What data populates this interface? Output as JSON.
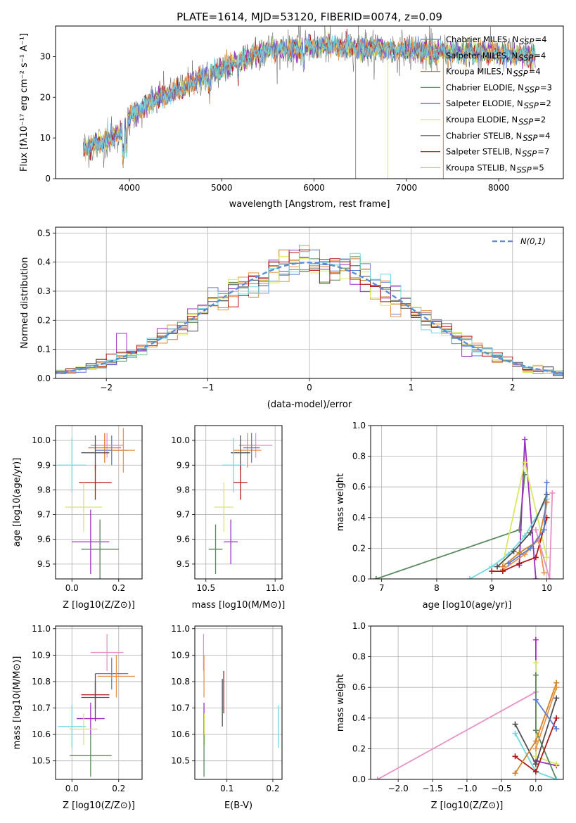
{
  "title": "PLATE=1614, MJD=53120, FIBERID=0074, z=0.09",
  "models": [
    {
      "name": "Chabrier MILES",
      "nssp": "4",
      "color": "#5b7fd4"
    },
    {
      "name": "Salpeter MILES",
      "nssp": "4",
      "color": "#e8944a"
    },
    {
      "name": "Kroupa MILES",
      "nssp": "4",
      "color": "#d4822a"
    },
    {
      "name": "Chabrier ELODIE",
      "nssp": "3",
      "color": "#5a8a5e"
    },
    {
      "name": "Salpeter ELODIE",
      "nssp": "2",
      "color": "#9b30c0"
    },
    {
      "name": "Kroupa ELODIE",
      "nssp": "2",
      "color": "#d8e860"
    },
    {
      "name": "Chabrier STELIB",
      "nssp": "4",
      "color": "#505050"
    },
    {
      "name": "Salpeter STELIB",
      "nssp": "7",
      "color": "#b01818"
    },
    {
      "name": "Kroupa STELIB",
      "nssp": "5",
      "color": "#70d8e0"
    }
  ],
  "extra_colors": [
    "#e890c8",
    "#808080"
  ],
  "chart_data": [
    {
      "id": "spectrum",
      "type": "line",
      "xlabel": "wavelength [Angstrom, rest frame]",
      "ylabel": "Flux [fλ10⁻¹⁷ erg cm⁻² s⁻¹ A⁻¹]",
      "xlim": [
        3200,
        8700
      ],
      "ylim": [
        0,
        37.5
      ],
      "xticks": [
        4000,
        5000,
        6000,
        7000,
        8000
      ],
      "yticks": [
        0,
        10,
        20,
        30
      ],
      "continuum": [
        [
          3500,
          7
        ],
        [
          3700,
          9
        ],
        [
          3900,
          11
        ],
        [
          4000,
          15
        ],
        [
          4200,
          18.5
        ],
        [
          4500,
          21.5
        ],
        [
          4800,
          25
        ],
        [
          5000,
          27
        ],
        [
          5200,
          29
        ],
        [
          5500,
          31.5
        ],
        [
          5800,
          32
        ],
        [
          6000,
          32.5
        ],
        [
          6300,
          32.5
        ],
        [
          6600,
          32
        ],
        [
          7000,
          31.5
        ],
        [
          7400,
          31
        ],
        [
          7800,
          31
        ],
        [
          8200,
          30.5
        ],
        [
          8400,
          30
        ]
      ],
      "grid": false
    },
    {
      "id": "residuals",
      "type": "line",
      "xlabel": "(data-model)/error",
      "ylabel": "Normed distribution",
      "xlim": [
        -2.5,
        2.5
      ],
      "ylim": [
        0,
        0.52
      ],
      "xticks": [
        -2,
        -1,
        0,
        1,
        2
      ],
      "yticks": [
        0.0,
        0.1,
        0.2,
        0.3,
        0.4,
        0.5
      ],
      "legend": "N(0,1)",
      "legend_position": "top-right",
      "grid": true
    },
    {
      "id": "age-vs-Z",
      "type": "scatter",
      "xlabel": "Z [log10(Z/Z⊙)]",
      "ylabel": "age [log10(age/yr)]",
      "xlim": [
        -0.07,
        0.3
      ],
      "ylim": [
        9.44,
        10.06
      ],
      "xticks": [
        0.0,
        0.2
      ],
      "yticks": [
        9.5,
        9.6,
        9.7,
        9.8,
        9.9,
        10.0
      ],
      "points": [
        {
          "x": 0.17,
          "y": 9.96,
          "ex": 0.07,
          "ey": 0.06,
          "c": 0
        },
        {
          "x": 0.22,
          "y": 9.96,
          "ex": 0.05,
          "ey": 0.09,
          "c": 1
        },
        {
          "x": 0.15,
          "y": 9.98,
          "ex": 0.07,
          "ey": 0.05,
          "c": 9
        },
        {
          "x": 0.14,
          "y": 9.97,
          "ex": 0.07,
          "ey": 0.06,
          "c": 2
        },
        {
          "x": 0.1,
          "y": 9.95,
          "ex": 0.06,
          "ey": 0.07,
          "c": 6
        },
        {
          "x": 0.0,
          "y": 9.9,
          "ex": 0.06,
          "ey": 0.11,
          "c": 8
        },
        {
          "x": 0.1,
          "y": 9.83,
          "ex": 0.07,
          "ey": 0.07,
          "c": 7
        },
        {
          "x": 0.05,
          "y": 9.73,
          "ex": 0.08,
          "ey": 0.1,
          "c": 5
        },
        {
          "x": 0.08,
          "y": 9.59,
          "ex": 0.08,
          "ey": 0.13,
          "c": 4
        },
        {
          "x": 0.12,
          "y": 9.56,
          "ex": 0.08,
          "ey": 0.12,
          "c": 3
        }
      ],
      "grid": true
    },
    {
      "id": "age-vs-mass",
      "type": "scatter",
      "xlabel": "mass [log10(M/M⊙)]",
      "ylabel": "",
      "xlim": [
        10.42,
        11.05
      ],
      "ylim": [
        9.44,
        10.06
      ],
      "xticks": [
        10.5,
        11.0
      ],
      "yticks": [
        9.5,
        9.6,
        9.7,
        9.8,
        9.9,
        10.0
      ],
      "points": [
        {
          "x": 10.86,
          "y": 9.98,
          "ex": 0.12,
          "ey": 0.05,
          "c": 9
        },
        {
          "x": 10.8,
          "y": 9.96,
          "ex": 0.1,
          "ey": 0.07,
          "c": 1
        },
        {
          "x": 10.83,
          "y": 9.97,
          "ex": 0.06,
          "ey": 0.06,
          "c": 0
        },
        {
          "x": 10.75,
          "y": 9.95,
          "ex": 0.07,
          "ey": 0.07,
          "c": 6
        },
        {
          "x": 10.7,
          "y": 9.9,
          "ex": 0.08,
          "ey": 0.11,
          "c": 8
        },
        {
          "x": 10.75,
          "y": 9.83,
          "ex": 0.05,
          "ey": 0.07,
          "c": 7
        },
        {
          "x": 10.63,
          "y": 9.73,
          "ex": 0.07,
          "ey": 0.1,
          "c": 5
        },
        {
          "x": 10.68,
          "y": 9.59,
          "ex": 0.05,
          "ey": 0.09,
          "c": 4
        },
        {
          "x": 10.57,
          "y": 9.56,
          "ex": 0.05,
          "ey": 0.1,
          "c": 3
        }
      ],
      "grid": true
    },
    {
      "id": "weight-vs-age",
      "type": "line",
      "xlabel": "age [log10(age/yr)]",
      "ylabel": "mass weight",
      "xlim": [
        6.8,
        10.3
      ],
      "ylim": [
        0,
        1.0
      ],
      "xticks": [
        7,
        8,
        9,
        10
      ],
      "yticks": [
        0.0,
        0.2,
        0.4,
        0.6,
        0.8,
        1.0
      ],
      "series": [
        {
          "c": 3,
          "x": [
            6.9,
            9.5,
            9.6
          ],
          "y": [
            0.0,
            0.32,
            0.68
          ]
        },
        {
          "c": 4,
          "x": [
            9.5,
            9.6,
            9.8
          ],
          "y": [
            0.09,
            0.91,
            0.0
          ]
        },
        {
          "c": 5,
          "x": [
            9.2,
            9.6,
            10.0
          ],
          "y": [
            0.1,
            0.76,
            0.14
          ]
        },
        {
          "c": 8,
          "x": [
            8.6,
            9.0,
            9.3,
            9.6,
            10.0
          ],
          "y": [
            0.0,
            0.08,
            0.16,
            0.28,
            0.52
          ]
        },
        {
          "c": 6,
          "x": [
            9.1,
            9.4,
            9.7,
            10.0
          ],
          "y": [
            0.08,
            0.18,
            0.3,
            0.55
          ]
        },
        {
          "c": 2,
          "x": [
            9.2,
            9.5,
            9.85,
            10.0
          ],
          "y": [
            0.08,
            0.17,
            0.25,
            0.5
          ]
        },
        {
          "c": 1,
          "x": [
            9.2,
            9.6,
            9.85,
            9.95
          ],
          "y": [
            0.06,
            0.16,
            0.26,
            0.04
          ]
        },
        {
          "c": 7,
          "x": [
            9.0,
            9.2,
            9.5,
            9.8,
            10.0
          ],
          "y": [
            0.05,
            0.05,
            0.1,
            0.14,
            0.4
          ]
        },
        {
          "c": 9,
          "x": [
            9.8,
            10.05,
            10.1
          ],
          "y": [
            0.32,
            0.0,
            0.56
          ]
        },
        {
          "c": 0,
          "x": [
            9.3,
            9.7,
            9.95,
            10.0
          ],
          "y": [
            0.1,
            0.2,
            0.32,
            0.63
          ]
        }
      ],
      "grid": true
    },
    {
      "id": "mass-vs-Z",
      "type": "scatter",
      "xlabel": "Z [log10(Z/Z⊙)]",
      "ylabel": "mass [log10(M/M⊙)]",
      "xlim": [
        -0.07,
        0.3
      ],
      "ylim": [
        10.43,
        11.01
      ],
      "xticks": [
        0.0,
        0.2
      ],
      "yticks": [
        10.5,
        10.6,
        10.7,
        10.8,
        10.9,
        11.0
      ],
      "points": [
        {
          "x": 0.15,
          "y": 10.91,
          "ex": 0.07,
          "ey": 0.07,
          "c": 9
        },
        {
          "x": 0.17,
          "y": 10.83,
          "ex": 0.07,
          "ey": 0.06,
          "c": 0
        },
        {
          "x": 0.19,
          "y": 10.82,
          "ex": 0.08,
          "ey": 0.08,
          "c": 1
        },
        {
          "x": 0.1,
          "y": 10.75,
          "ex": 0.06,
          "ey": 0.05,
          "c": 7
        },
        {
          "x": 0.1,
          "y": 10.74,
          "ex": 0.06,
          "ey": 0.09,
          "c": 6
        },
        {
          "x": 0.08,
          "y": 10.66,
          "ex": 0.06,
          "ey": 0.06,
          "c": 4
        },
        {
          "x": 0.0,
          "y": 10.63,
          "ex": 0.06,
          "ey": 0.08,
          "c": 8
        },
        {
          "x": 0.05,
          "y": 10.62,
          "ex": 0.06,
          "ey": 0.06,
          "c": 5
        },
        {
          "x": 0.08,
          "y": 10.52,
          "ex": 0.09,
          "ey": 0.08,
          "c": 3
        }
      ],
      "grid": true
    },
    {
      "id": "mass-vs-ebv",
      "type": "scatter",
      "xlabel": "E(B-V)",
      "ylabel": "",
      "xlim": [
        0.03,
        0.22
      ],
      "ylim": [
        10.43,
        11.01
      ],
      "xticks": [
        0.1,
        0.2
      ],
      "yticks": [
        10.5,
        10.6,
        10.7,
        10.8,
        10.9,
        11.0
      ],
      "points": [
        {
          "x": 0.049,
          "y": 10.91,
          "ex": 0,
          "ey": 0.07,
          "c": 9
        },
        {
          "x": 0.05,
          "y": 10.82,
          "ex": 0,
          "ey": 0.08,
          "c": 1
        },
        {
          "x": 0.05,
          "y": 10.66,
          "ex": 0,
          "ey": 0.06,
          "c": 4
        },
        {
          "x": 0.051,
          "y": 10.62,
          "ex": 0,
          "ey": 0.06,
          "c": 5
        },
        {
          "x": 0.05,
          "y": 10.52,
          "ex": 0,
          "ey": 0.08,
          "c": 3
        },
        {
          "x": 0.09,
          "y": 10.72,
          "ex": 0,
          "ey": 0.09,
          "c": 6
        },
        {
          "x": 0.093,
          "y": 10.76,
          "ex": 0,
          "ey": 0.08,
          "c": 7
        },
        {
          "x": 0.212,
          "y": 10.63,
          "ex": 0,
          "ey": 0.08,
          "c": 8
        }
      ],
      "grid": true
    },
    {
      "id": "weight-vs-Z",
      "type": "line",
      "xlabel": "Z [log10(Z/Z⊙)]",
      "ylabel": "mass weight",
      "xlim": [
        -2.4,
        0.4
      ],
      "ylim": [
        0,
        1.0
      ],
      "xticks": [
        -2.0,
        -1.5,
        -1.0,
        -0.5,
        0.0
      ],
      "yticks": [
        0.0,
        0.2,
        0.4,
        0.6,
        0.8,
        1.0
      ],
      "series": [
        {
          "c": 9,
          "x": [
            -2.3,
            0.0
          ],
          "y": [
            0.0,
            0.57
          ]
        },
        {
          "c": 4,
          "x": [
            0.0,
            0.0,
            0.3
          ],
          "y": [
            0.91,
            0.12,
            0.09
          ]
        },
        {
          "c": 5,
          "x": [
            0.0,
            0.0,
            0.3
          ],
          "y": [
            0.76,
            0.15,
            0.1
          ]
        },
        {
          "c": 3,
          "x": [
            0.0,
            0.0,
            0.3
          ],
          "y": [
            0.68,
            0.32,
            0.0
          ]
        },
        {
          "c": 6,
          "x": [
            -0.3,
            0.0,
            0.3
          ],
          "y": [
            0.36,
            0.1,
            0.53
          ]
        },
        {
          "c": 8,
          "x": [
            -0.3,
            0.0,
            0.3
          ],
          "y": [
            0.3,
            0.05,
            0.0
          ]
        },
        {
          "c": 7,
          "x": [
            -0.3,
            0.0,
            0.3
          ],
          "y": [
            0.15,
            0.05,
            0.4
          ]
        },
        {
          "c": 2,
          "x": [
            -0.3,
            0.0,
            0.3
          ],
          "y": [
            0.04,
            0.25,
            0.63
          ]
        },
        {
          "c": 1,
          "x": [
            0.0,
            0.3
          ],
          "y": [
            0.2,
            0.6
          ]
        },
        {
          "c": 0,
          "x": [
            0.0,
            0.3
          ],
          "y": [
            0.52,
            0.33
          ]
        }
      ],
      "grid": true
    }
  ]
}
